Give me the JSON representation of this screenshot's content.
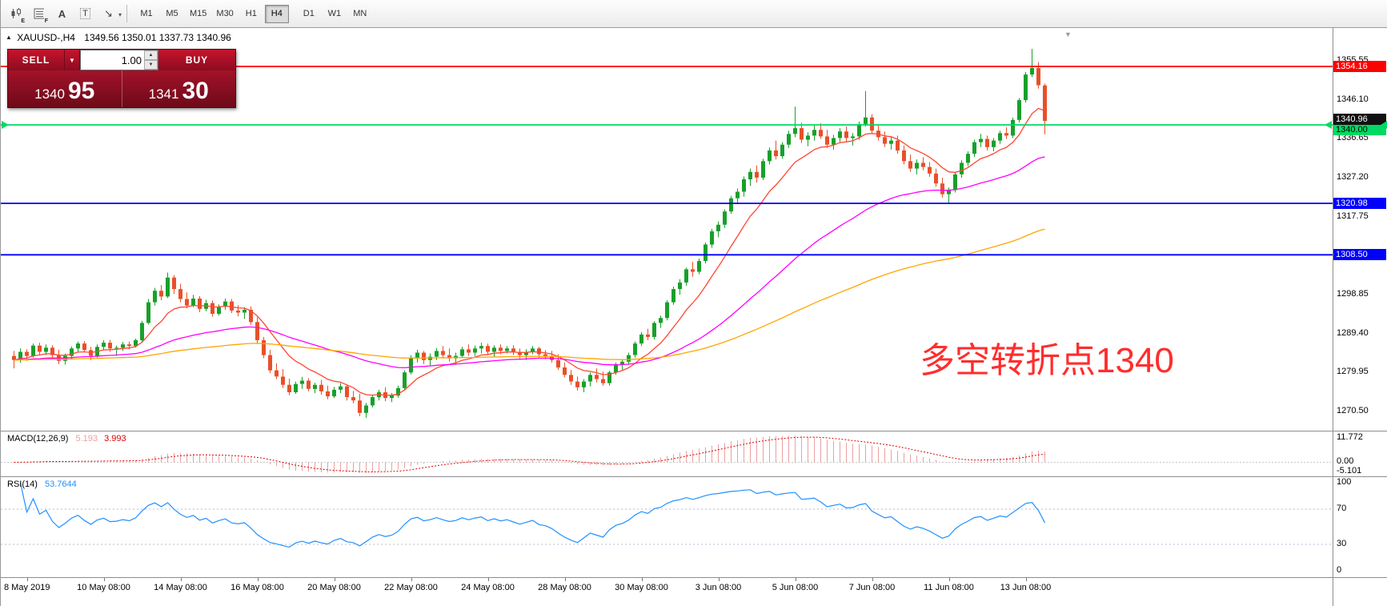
{
  "icons": {
    "title_marker": "▲",
    "caret_down": "▼",
    "spin_up": "▲",
    "spin_down": "▼",
    "shift_marker": "▼"
  },
  "toolbar": {
    "timeframes": [
      "M1",
      "M5",
      "M15",
      "M30",
      "H1",
      "H4",
      "D1",
      "W1",
      "MN"
    ],
    "active_timeframe": "H4",
    "icons": [
      {
        "name": "candlestick-template-icon",
        "badge": "E"
      },
      {
        "name": "indicator-list-icon",
        "badge": "F"
      },
      {
        "name": "text-label-icon",
        "glyph": "A"
      },
      {
        "name": "text-box-icon",
        "glyph": "T"
      },
      {
        "name": "arrow-tools-icon",
        "glyph": "↘",
        "caret": "▾"
      }
    ]
  },
  "chart": {
    "symbol_title": "XAUUSD-,H4",
    "ohlc_text": "1349.56 1350.01 1337.73 1340.96",
    "annotation": {
      "text": "多空转折点1340",
      "color": "#ff2d2d"
    },
    "trade_panel": {
      "sell_label": "SELL",
      "buy_label": "BUY",
      "volume": "1.00",
      "sell_price_main": "1340",
      "sell_price_pips": "95",
      "buy_price_main": "1341",
      "buy_price_pips": "30"
    },
    "hlines": [
      {
        "price": 1354.16,
        "color": "#ff0000",
        "text_color": "#ffffff"
      },
      {
        "price": 1340.0,
        "color": "#00d964",
        "text_color": "#000000",
        "arrows": true
      },
      {
        "price": 1320.98,
        "color": "#0000ff",
        "text_color": "#ffffff"
      },
      {
        "price": 1308.5,
        "color": "#0000ff",
        "text_color": "#ffffff"
      }
    ],
    "bid_price": 1340.96,
    "bid_color": "#111111",
    "bid_text_color": "#ffffff",
    "price_axis": {
      "ticks": [
        1355.55,
        1346.1,
        1336.65,
        1327.2,
        1317.75,
        1298.85,
        1289.4,
        1279.95,
        1270.5
      ]
    }
  },
  "macd": {
    "label": "MACD(12,26,9)",
    "value_main": "5.193",
    "value_signal": "3.993",
    "axis_labels": [
      "11.772",
      "0.00",
      "-5.101"
    ],
    "histogram_color": "#eda0a0",
    "signal_color": "#e00000"
  },
  "rsi": {
    "label": "RSI(14)",
    "value": "53.7644",
    "axis": [
      100,
      70,
      30,
      0
    ],
    "levels": [
      70,
      30
    ],
    "line_color": "#2090ff"
  },
  "chart_data": {
    "type": "candlestick",
    "symbol": "XAUUSD-",
    "timeframe": "H4",
    "ohlc_current": {
      "open": 1349.56,
      "high": 1350.01,
      "low": 1337.73,
      "close": 1340.96
    },
    "y_axis_range": [
      1265.9,
      1363.3
    ],
    "up_color": "#18a02a",
    "down_color": "#e8502a",
    "moving_averages": [
      {
        "type": "EMA",
        "period": 10,
        "color": "#ff4632"
      },
      {
        "type": "EMA",
        "period": 45,
        "color": "#ff00ff"
      },
      {
        "type": "EMA",
        "period": 120,
        "color": "#ffa500"
      }
    ],
    "x_axis_labels": [
      {
        "text": "8 May 2019",
        "index": 2
      },
      {
        "text": "10 May 08:00",
        "index": 14
      },
      {
        "text": "14 May 08:00",
        "index": 26
      },
      {
        "text": "16 May 08:00",
        "index": 38
      },
      {
        "text": "20 May 08:00",
        "index": 50
      },
      {
        "text": "22 May 08:00",
        "index": 62
      },
      {
        "text": "24 May 08:00",
        "index": 74
      },
      {
        "text": "28 May 08:00",
        "index": 86
      },
      {
        "text": "30 May 08:00",
        "index": 98
      },
      {
        "text": "3 Jun 08:00",
        "index": 110
      },
      {
        "text": "5 Jun 08:00",
        "index": 122
      },
      {
        "text": "7 Jun 08:00",
        "index": 134
      },
      {
        "text": "11 Jun 08:00",
        "index": 146
      },
      {
        "text": "13 Jun 08:00",
        "index": 158
      }
    ],
    "candles": [
      [
        1284.0,
        1285.2,
        1281.0,
        1283.0
      ],
      [
        1283.0,
        1285.8,
        1282.4,
        1285.0
      ],
      [
        1285.0,
        1285.6,
        1282.8,
        1284.0
      ],
      [
        1284.0,
        1287.0,
        1283.6,
        1286.5
      ],
      [
        1286.5,
        1287.2,
        1284.3,
        1285.0
      ],
      [
        1285.0,
        1286.8,
        1284.2,
        1286.0
      ],
      [
        1286.0,
        1286.6,
        1283.5,
        1284.2
      ],
      [
        1284.2,
        1285.5,
        1282.0,
        1282.8
      ],
      [
        1282.8,
        1284.6,
        1281.9,
        1284.0
      ],
      [
        1284.0,
        1286.3,
        1283.2,
        1285.8
      ],
      [
        1285.8,
        1287.5,
        1285.0,
        1287.0
      ],
      [
        1287.0,
        1287.6,
        1284.8,
        1285.4
      ],
      [
        1285.4,
        1286.2,
        1283.0,
        1284.0
      ],
      [
        1284.0,
        1286.8,
        1283.6,
        1286.2
      ],
      [
        1286.2,
        1287.8,
        1285.4,
        1287.2
      ],
      [
        1287.2,
        1287.9,
        1285.0,
        1285.8
      ],
      [
        1285.8,
        1286.5,
        1284.0,
        1286.0
      ],
      [
        1286.0,
        1287.4,
        1285.2,
        1286.8
      ],
      [
        1286.8,
        1287.5,
        1285.6,
        1286.4
      ],
      [
        1286.4,
        1288.2,
        1286.0,
        1287.8
      ],
      [
        1287.8,
        1292.5,
        1287.4,
        1292.0
      ],
      [
        1292.0,
        1297.8,
        1291.6,
        1297.0
      ],
      [
        1297.0,
        1300.5,
        1296.2,
        1299.8
      ],
      [
        1299.8,
        1301.2,
        1297.5,
        1298.4
      ],
      [
        1298.4,
        1304.2,
        1298.0,
        1303.0
      ],
      [
        1303.0,
        1303.6,
        1299.0,
        1300.2
      ],
      [
        1300.2,
        1301.5,
        1297.0,
        1297.8
      ],
      [
        1297.8,
        1299.4,
        1295.5,
        1296.2
      ],
      [
        1296.2,
        1298.8,
        1295.8,
        1297.9
      ],
      [
        1297.9,
        1298.5,
        1294.6,
        1295.4
      ],
      [
        1295.4,
        1297.6,
        1294.8,
        1296.8
      ],
      [
        1296.8,
        1297.4,
        1293.5,
        1294.2
      ],
      [
        1294.2,
        1296.5,
        1293.8,
        1295.9
      ],
      [
        1295.9,
        1297.9,
        1295.2,
        1297.2
      ],
      [
        1297.2,
        1297.8,
        1294.4,
        1295.0
      ],
      [
        1295.0,
        1296.3,
        1293.6,
        1294.5
      ],
      [
        1294.5,
        1295.8,
        1293.0,
        1295.2
      ],
      [
        1295.2,
        1296.0,
        1291.5,
        1292.2
      ],
      [
        1292.2,
        1293.4,
        1287.0,
        1287.8
      ],
      [
        1287.8,
        1288.6,
        1283.5,
        1284.2
      ],
      [
        1284.2,
        1285.5,
        1279.8,
        1280.5
      ],
      [
        1280.5,
        1282.2,
        1278.4,
        1279.0
      ],
      [
        1279.0,
        1280.8,
        1276.2,
        1277.0
      ],
      [
        1277.0,
        1278.5,
        1274.5,
        1275.2
      ],
      [
        1275.2,
        1277.8,
        1274.8,
        1277.2
      ],
      [
        1277.2,
        1278.9,
        1276.0,
        1278.0
      ],
      [
        1278.0,
        1278.6,
        1275.4,
        1276.0
      ],
      [
        1276.0,
        1277.5,
        1275.0,
        1277.0
      ],
      [
        1277.0,
        1278.2,
        1274.6,
        1275.4
      ],
      [
        1275.4,
        1276.8,
        1273.5,
        1274.2
      ],
      [
        1274.2,
        1276.5,
        1273.8,
        1275.8
      ],
      [
        1275.8,
        1277.4,
        1275.0,
        1276.6
      ],
      [
        1276.6,
        1277.0,
        1273.2,
        1274.0
      ],
      [
        1274.0,
        1275.5,
        1272.5,
        1273.2
      ],
      [
        1273.2,
        1274.8,
        1269.4,
        1270.2
      ],
      [
        1270.2,
        1272.6,
        1269.0,
        1272.0
      ],
      [
        1272.0,
        1274.5,
        1271.5,
        1274.0
      ],
      [
        1274.0,
        1275.8,
        1273.2,
        1275.2
      ],
      [
        1275.2,
        1276.4,
        1273.0,
        1273.8
      ],
      [
        1273.8,
        1275.0,
        1272.8,
        1274.4
      ],
      [
        1274.4,
        1276.8,
        1273.9,
        1276.2
      ],
      [
        1276.2,
        1280.5,
        1275.8,
        1280.0
      ],
      [
        1280.0,
        1284.2,
        1279.5,
        1283.6
      ],
      [
        1283.6,
        1285.5,
        1282.4,
        1284.8
      ],
      [
        1284.8,
        1285.2,
        1282.0,
        1283.0
      ],
      [
        1283.0,
        1284.6,
        1281.5,
        1283.8
      ],
      [
        1283.8,
        1285.9,
        1283.0,
        1285.2
      ],
      [
        1285.2,
        1286.4,
        1283.4,
        1284.2
      ],
      [
        1284.2,
        1285.8,
        1282.6,
        1283.4
      ],
      [
        1283.4,
        1284.8,
        1281.8,
        1284.0
      ],
      [
        1284.0,
        1286.2,
        1283.5,
        1285.6
      ],
      [
        1285.6,
        1286.8,
        1284.0,
        1284.8
      ],
      [
        1284.8,
        1286.5,
        1284.0,
        1285.8
      ],
      [
        1285.8,
        1287.2,
        1284.6,
        1286.4
      ],
      [
        1286.4,
        1287.0,
        1284.2,
        1285.0
      ],
      [
        1285.0,
        1286.6,
        1283.8,
        1286.0
      ],
      [
        1286.0,
        1286.8,
        1284.4,
        1285.2
      ],
      [
        1285.2,
        1286.4,
        1284.6,
        1285.8
      ],
      [
        1285.8,
        1286.6,
        1284.2,
        1285.0
      ],
      [
        1285.0,
        1285.8,
        1283.4,
        1284.2
      ],
      [
        1284.2,
        1285.6,
        1283.0,
        1285.0
      ],
      [
        1285.0,
        1286.4,
        1284.4,
        1285.8
      ],
      [
        1285.8,
        1286.2,
        1283.6,
        1284.4
      ],
      [
        1284.4,
        1285.4,
        1283.2,
        1284.0
      ],
      [
        1284.0,
        1285.2,
        1282.4,
        1283.0
      ],
      [
        1283.0,
        1284.4,
        1280.6,
        1281.2
      ],
      [
        1281.2,
        1282.4,
        1278.8,
        1279.4
      ],
      [
        1279.4,
        1280.6,
        1277.0,
        1277.8
      ],
      [
        1277.8,
        1279.0,
        1275.6,
        1276.4
      ],
      [
        1276.4,
        1278.4,
        1275.2,
        1277.8
      ],
      [
        1277.8,
        1280.0,
        1276.6,
        1279.4
      ],
      [
        1279.4,
        1281.0,
        1277.6,
        1278.4
      ],
      [
        1278.4,
        1280.2,
        1276.8,
        1277.4
      ],
      [
        1277.4,
        1280.4,
        1276.8,
        1280.0
      ],
      [
        1280.0,
        1282.4,
        1279.4,
        1281.8
      ],
      [
        1281.8,
        1283.2,
        1280.6,
        1282.6
      ],
      [
        1282.6,
        1284.8,
        1281.8,
        1284.2
      ],
      [
        1284.2,
        1287.5,
        1283.6,
        1287.0
      ],
      [
        1287.0,
        1289.8,
        1286.4,
        1289.2
      ],
      [
        1289.2,
        1290.6,
        1287.8,
        1288.6
      ],
      [
        1288.6,
        1292.4,
        1288.0,
        1292.0
      ],
      [
        1292.0,
        1293.8,
        1290.8,
        1293.2
      ],
      [
        1293.2,
        1297.5,
        1292.6,
        1297.0
      ],
      [
        1297.0,
        1300.8,
        1296.4,
        1300.2
      ],
      [
        1300.2,
        1302.6,
        1298.8,
        1301.8
      ],
      [
        1301.8,
        1305.4,
        1301.0,
        1305.0
      ],
      [
        1305.0,
        1306.8,
        1303.2,
        1304.4
      ],
      [
        1304.4,
        1307.6,
        1303.8,
        1307.0
      ],
      [
        1307.0,
        1311.5,
        1306.4,
        1311.0
      ],
      [
        1311.0,
        1314.8,
        1310.2,
        1314.2
      ],
      [
        1314.2,
        1316.6,
        1312.8,
        1315.8
      ],
      [
        1315.8,
        1319.5,
        1315.0,
        1319.0
      ],
      [
        1319.0,
        1322.8,
        1318.4,
        1322.2
      ],
      [
        1322.2,
        1324.6,
        1320.8,
        1323.8
      ],
      [
        1323.8,
        1327.5,
        1322.6,
        1326.8
      ],
      [
        1326.8,
        1329.4,
        1325.2,
        1328.6
      ],
      [
        1328.6,
        1330.2,
        1326.0,
        1327.2
      ],
      [
        1327.2,
        1331.8,
        1326.6,
        1331.2
      ],
      [
        1331.2,
        1334.5,
        1330.4,
        1333.8
      ],
      [
        1333.8,
        1336.2,
        1331.6,
        1332.4
      ],
      [
        1332.4,
        1335.8,
        1331.8,
        1335.2
      ],
      [
        1335.2,
        1338.6,
        1334.4,
        1337.8
      ],
      [
        1337.8,
        1344.4,
        1337.0,
        1339.2
      ],
      [
        1339.2,
        1340.5,
        1335.6,
        1336.4
      ],
      [
        1336.4,
        1338.2,
        1334.8,
        1337.4
      ],
      [
        1337.4,
        1339.8,
        1336.2,
        1338.8
      ],
      [
        1338.8,
        1340.4,
        1336.6,
        1337.2
      ],
      [
        1337.2,
        1338.8,
        1334.4,
        1335.2
      ],
      [
        1335.2,
        1337.6,
        1334.0,
        1336.8
      ],
      [
        1336.8,
        1339.2,
        1335.8,
        1338.4
      ],
      [
        1338.4,
        1339.6,
        1336.0,
        1336.8
      ],
      [
        1336.8,
        1338.0,
        1335.0,
        1337.2
      ],
      [
        1337.2,
        1340.8,
        1336.4,
        1340.2
      ],
      [
        1340.2,
        1348.2,
        1339.6,
        1341.8
      ],
      [
        1341.8,
        1342.6,
        1337.8,
        1338.6
      ],
      [
        1338.6,
        1340.0,
        1336.2,
        1337.0
      ],
      [
        1337.0,
        1338.4,
        1334.6,
        1335.4
      ],
      [
        1335.4,
        1337.0,
        1334.0,
        1336.2
      ],
      [
        1336.2,
        1337.4,
        1333.0,
        1333.8
      ],
      [
        1333.8,
        1335.0,
        1330.4,
        1331.2
      ],
      [
        1331.2,
        1332.8,
        1328.6,
        1329.4
      ],
      [
        1329.4,
        1331.6,
        1328.0,
        1330.8
      ],
      [
        1330.8,
        1332.2,
        1329.0,
        1329.8
      ],
      [
        1329.8,
        1331.0,
        1327.4,
        1328.2
      ],
      [
        1328.2,
        1329.4,
        1325.0,
        1325.8
      ],
      [
        1325.8,
        1327.2,
        1322.4,
        1323.2
      ],
      [
        1323.2,
        1324.8,
        1321.0,
        1324.2
      ],
      [
        1324.2,
        1328.6,
        1323.6,
        1328.0
      ],
      [
        1328.0,
        1331.4,
        1327.2,
        1330.8
      ],
      [
        1330.8,
        1333.6,
        1330.0,
        1333.0
      ],
      [
        1333.0,
        1336.4,
        1332.2,
        1335.8
      ],
      [
        1335.8,
        1337.8,
        1334.6,
        1336.6
      ],
      [
        1336.6,
        1337.4,
        1333.8,
        1334.6
      ],
      [
        1334.6,
        1336.8,
        1333.6,
        1336.2
      ],
      [
        1336.2,
        1338.6,
        1335.4,
        1338.0
      ],
      [
        1338.0,
        1339.4,
        1336.6,
        1337.4
      ],
      [
        1337.4,
        1341.8,
        1336.8,
        1341.2
      ],
      [
        1341.2,
        1346.5,
        1340.6,
        1346.0
      ],
      [
        1346.0,
        1352.8,
        1345.4,
        1352.2
      ],
      [
        1352.2,
        1358.4,
        1351.6,
        1353.8
      ],
      [
        1353.8,
        1355.2,
        1348.8,
        1349.6
      ],
      [
        1349.56,
        1350.01,
        1337.73,
        1340.96
      ]
    ]
  }
}
